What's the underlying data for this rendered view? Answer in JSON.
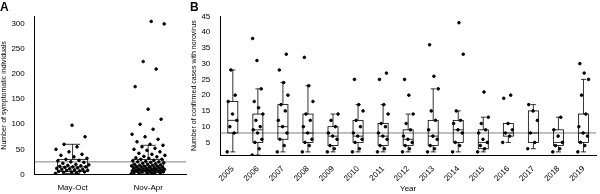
{
  "chart_data": [
    {
      "type": "box",
      "title": "A",
      "ylabel": "Number of symptomatic individuals",
      "color": "#000000",
      "categories": [
        "May-Oct",
        "Nov-Apr"
      ],
      "ylim": [
        0,
        315
      ],
      "yticks": [
        0,
        50,
        100,
        150,
        200,
        250,
        300
      ],
      "reference_line": 25,
      "values": [
        [
          2,
          3,
          4,
          5,
          5,
          6,
          7,
          8,
          8,
          9,
          10,
          10,
          11,
          12,
          13,
          14,
          15,
          15,
          16,
          17,
          18,
          19,
          20,
          22,
          24,
          25,
          27,
          28,
          30,
          32,
          35,
          38,
          40,
          45,
          50,
          55,
          60,
          75,
          98
        ],
        [
          1,
          2,
          2,
          3,
          3,
          4,
          4,
          5,
          5,
          5,
          6,
          6,
          7,
          7,
          8,
          8,
          8,
          9,
          9,
          10,
          10,
          10,
          11,
          11,
          12,
          12,
          13,
          13,
          14,
          14,
          15,
          15,
          16,
          16,
          17,
          18,
          18,
          19,
          20,
          20,
          21,
          22,
          23,
          24,
          25,
          25,
          26,
          27,
          28,
          30,
          30,
          32,
          33,
          35,
          36,
          38,
          40,
          42,
          45,
          48,
          50,
          52,
          55,
          58,
          60,
          65,
          70,
          75,
          80,
          90,
          100,
          110,
          130,
          175,
          210,
          225,
          300,
          305
        ]
      ],
      "boxes": [
        {
          "min": 2,
          "q1": 6,
          "median": 15,
          "q3": 30,
          "max": 60
        },
        {
          "min": 1,
          "q1": 8,
          "median": 17,
          "q3": 30,
          "max": 58
        }
      ]
    },
    {
      "type": "box",
      "title": "B",
      "xlabel": "Year",
      "ylabel": "Number of confirmed cases with norovirus",
      "color": "#000000",
      "categories": [
        "2005",
        "2006",
        "2007",
        "2008",
        "2009",
        "2010",
        "2011",
        "2012",
        "2013",
        "2014",
        "2015",
        "2016",
        "2017",
        "2018",
        "2019"
      ],
      "ylim": [
        1,
        45
      ],
      "yticks": [
        5,
        10,
        15,
        20,
        25,
        30,
        35,
        40,
        45
      ],
      "reference_line": 8,
      "values": [
        [
          2,
          8,
          10,
          12,
          14,
          18,
          20,
          28
        ],
        [
          1,
          3,
          5,
          6,
          8,
          9,
          10,
          12,
          14,
          16,
          18,
          22,
          31,
          38
        ],
        [
          2,
          4,
          6,
          8,
          10,
          12,
          15,
          17,
          20,
          24,
          28,
          33
        ],
        [
          2,
          4,
          5,
          6,
          8,
          10,
          12,
          14,
          18,
          23,
          32
        ],
        [
          2,
          3,
          4,
          6,
          7,
          8,
          10,
          12,
          14
        ],
        [
          2,
          3,
          5,
          6,
          7,
          8,
          10,
          12,
          15,
          17,
          25
        ],
        [
          2,
          3,
          4,
          6,
          7,
          8,
          10,
          11,
          14,
          17,
          25,
          27
        ],
        [
          2,
          3,
          4,
          5,
          6,
          7,
          9,
          11,
          14,
          20,
          25
        ],
        [
          2,
          3,
          4,
          6,
          7,
          9,
          12,
          15,
          22,
          26,
          36
        ],
        [
          2,
          4,
          5,
          8,
          9,
          11,
          12,
          15,
          33,
          43
        ],
        [
          2,
          3,
          4,
          5,
          6,
          8,
          9,
          11,
          13,
          21
        ],
        [
          5,
          7,
          8,
          9,
          11,
          19,
          20
        ],
        [
          3,
          5,
          8,
          12,
          15,
          17
        ],
        [
          2,
          3,
          4,
          5,
          7,
          9,
          13
        ],
        [
          2,
          4,
          5,
          7,
          8,
          10,
          14,
          20,
          25,
          27,
          30
        ]
      ],
      "boxes": [
        {
          "min": 2,
          "q1": 8,
          "median": 12,
          "q3": 18,
          "max": 28
        },
        {
          "min": 1,
          "q1": 5,
          "median": 9,
          "q3": 14,
          "max": 22
        },
        {
          "min": 2,
          "q1": 6,
          "median": 10,
          "q3": 17,
          "max": 24
        },
        {
          "min": 2,
          "q1": 5,
          "median": 8,
          "q3": 14,
          "max": 23
        },
        {
          "min": 2,
          "q1": 4,
          "median": 7,
          "q3": 10,
          "max": 14
        },
        {
          "min": 2,
          "q1": 5,
          "median": 7,
          "q3": 12,
          "max": 17
        },
        {
          "min": 2,
          "q1": 4,
          "median": 7,
          "q3": 11,
          "max": 17
        },
        {
          "min": 2,
          "q1": 4,
          "median": 6,
          "q3": 9,
          "max": 14
        },
        {
          "min": 2,
          "q1": 4,
          "median": 7,
          "q3": 12,
          "max": 22
        },
        {
          "min": 2,
          "q1": 5,
          "median": 9,
          "q3": 12,
          "max": 15
        },
        {
          "min": 2,
          "q1": 3,
          "median": 5,
          "q3": 9,
          "max": 13
        },
        {
          "min": 5,
          "q1": 7,
          "median": 8,
          "q3": 11,
          "max": 11
        },
        {
          "min": 3,
          "q1": 5,
          "median": 8,
          "q3": 15,
          "max": 17
        },
        {
          "min": 2,
          "q1": 4,
          "median": 5,
          "q3": 9,
          "max": 13
        },
        {
          "min": 2,
          "q1": 5,
          "median": 8,
          "q3": 14,
          "max": 25
        }
      ]
    }
  ]
}
